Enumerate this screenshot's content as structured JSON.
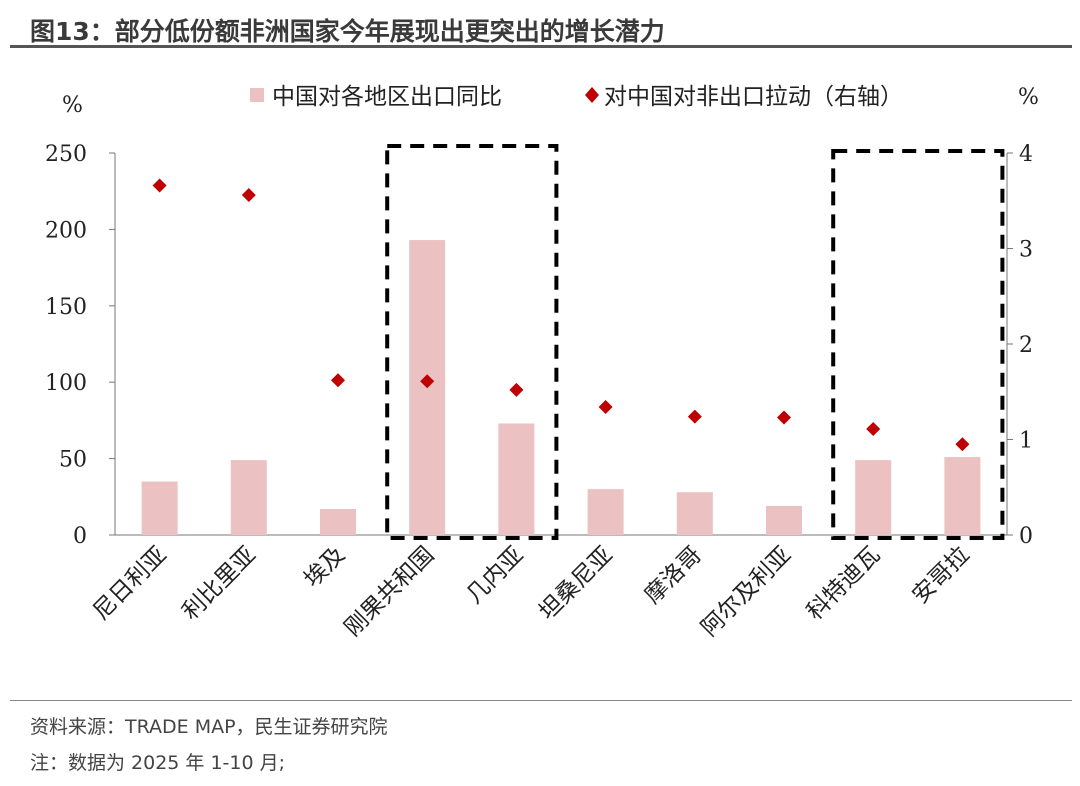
{
  "title": "图13：部分低份额非洲国家今年展现出更突出的增长潜力",
  "source": "资料来源：TRADE MAP，民生证券研究院",
  "note": "注：数据为 2025 年 1-10 月;",
  "chart_data": {
    "type": "bar",
    "categories": [
      "尼日利亚",
      "利比里亚",
      "埃及",
      "刚果共和国",
      "几内亚",
      "坦桑尼亚",
      "摩洛哥",
      "阿尔及利亚",
      "科特迪瓦",
      "安哥拉"
    ],
    "series": [
      {
        "name": "中国对各地区出口同比",
        "type": "bar",
        "axis": "left",
        "color": "#ebc1c1",
        "values": [
          35,
          49,
          17,
          193,
          73,
          30,
          28,
          19,
          49,
          51
        ]
      },
      {
        "name": "对中国对非出口拉动（右轴）",
        "type": "scatter",
        "marker": "diamond",
        "axis": "right",
        "color": "#c00000",
        "values": [
          3.66,
          3.56,
          1.62,
          1.61,
          1.52,
          1.34,
          1.24,
          1.23,
          1.11,
          0.95
        ]
      }
    ],
    "ylabel": "%",
    "y2label": "%",
    "ylim": [
      0,
      250
    ],
    "yticks": [
      0,
      50,
      100,
      150,
      200,
      250
    ],
    "y2lim": [
      0,
      4
    ],
    "y2ticks": [
      0,
      1,
      2,
      3,
      4
    ],
    "legend": "top",
    "highlighted_groups": [
      [
        "刚果共和国",
        "几内亚"
      ],
      [
        "科特迪瓦",
        "安哥拉"
      ]
    ]
  }
}
